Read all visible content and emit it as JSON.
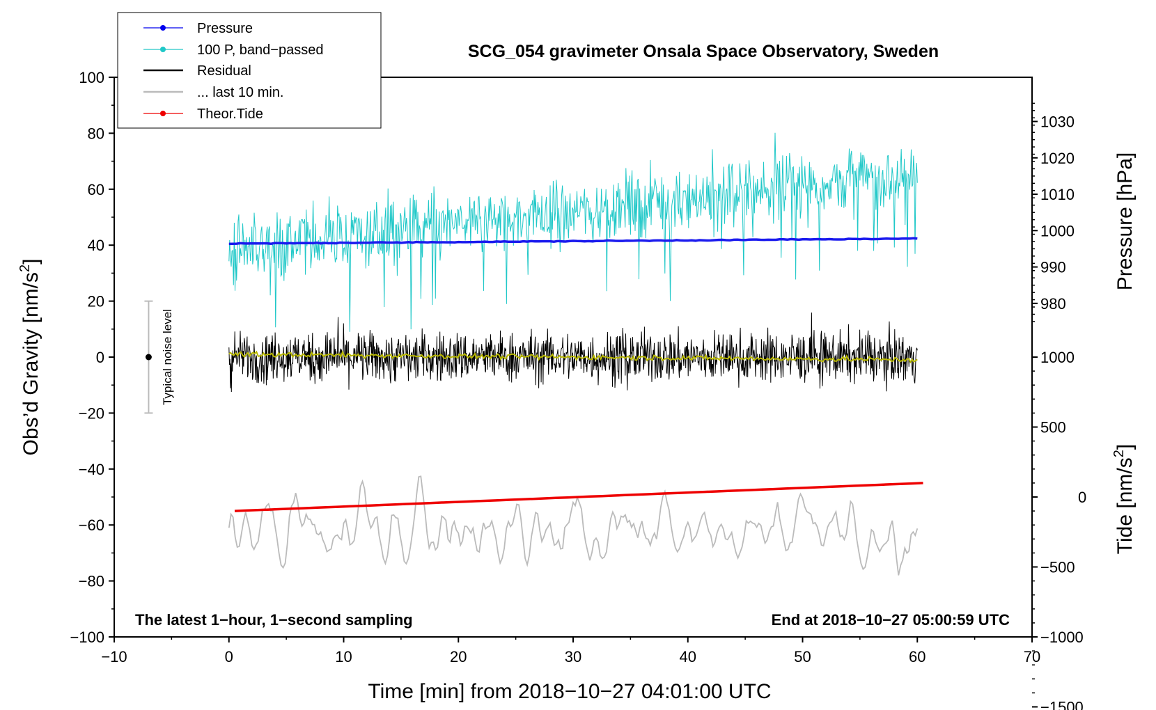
{
  "chart_data": {
    "type": "line",
    "title": "SCG_054 gravimeter Onsala Space Observatory, Sweden",
    "xlabel": "Time [min] from 2018−10−27 04:01:00 UTC",
    "ylabel_left": "Obs’d Gravity [nm/s",
    "ylabel_left_sup": "2",
    "ylabel_left_end": "]",
    "ylabel_pressure": "Pressure [hPa]",
    "ylabel_tide": "Tide [nm/s",
    "ylabel_tide_sup": "2",
    "ylabel_tide_end": "]",
    "xlim": [
      -10,
      70
    ],
    "ylim": [
      -100,
      100
    ],
    "x_ticks": [
      {
        "value": -10,
        "label": "−10"
      },
      {
        "value": 0,
        "label": "0"
      },
      {
        "value": 10,
        "label": "10"
      },
      {
        "value": 20,
        "label": "20"
      },
      {
        "value": 30,
        "label": "30"
      },
      {
        "value": 40,
        "label": "40"
      },
      {
        "value": 50,
        "label": "50"
      },
      {
        "value": 60,
        "label": "60"
      },
      {
        "value": 70,
        "label": "70"
      }
    ],
    "y_ticks": [
      {
        "value": 100,
        "label": "100"
      },
      {
        "value": 80,
        "label": "80"
      },
      {
        "value": 60,
        "label": "60"
      },
      {
        "value": 40,
        "label": "40"
      },
      {
        "value": 20,
        "label": "20"
      },
      {
        "value": 0,
        "label": "0"
      },
      {
        "value": -20,
        "label": "−20"
      },
      {
        "value": -40,
        "label": "−40"
      },
      {
        "value": -60,
        "label": "−60"
      },
      {
        "value": -80,
        "label": "−80"
      },
      {
        "value": -100,
        "label": "−100"
      }
    ],
    "pressure_axis": {
      "map_note": "gravity = 40 + (hPa - 996) * 1.3",
      "ticks": [
        {
          "value": 1030,
          "label": "1030"
        },
        {
          "value": 1020,
          "label": "1020"
        },
        {
          "value": 1010,
          "label": "1010"
        },
        {
          "value": 1000,
          "label": "1000"
        },
        {
          "value": 990,
          "label": "990"
        },
        {
          "value": 980,
          "label": "980"
        }
      ]
    },
    "tide_axis": {
      "map_note": "gravity = -50 + tide / 20",
      "ticks": [
        {
          "value": 1000,
          "label": "1000"
        },
        {
          "value": 500,
          "label": "500"
        },
        {
          "value": 0,
          "label": "0"
        },
        {
          "value": -500,
          "label": "−500"
        },
        {
          "value": -1000,
          "label": "−1000"
        },
        {
          "value": -1500,
          "label": "−1500"
        }
      ]
    },
    "annotations": {
      "left_info": "The latest 1−hour, 1−second sampling",
      "right_info": "End at 2018−10−27 05:00:59 UTC",
      "noise_label": "Typical noise level",
      "noise_bar": {
        "x": -7,
        "center": 0,
        "half_range": 20
      }
    },
    "legend": {
      "placement": "top-left",
      "entries": [
        {
          "label": "Pressure",
          "color": "#0000ee",
          "marker": true,
          "thick": false
        },
        {
          "label": "100 P, band−passed",
          "color": "#20c8c8",
          "marker": true,
          "thick": false
        },
        {
          "label": "Residual",
          "color": "#000000",
          "marker": false,
          "thick": true
        },
        {
          "label": "... last 10 min.",
          "color": "#bbbbbb",
          "marker": false,
          "thick": true
        },
        {
          "label": "Theor.Tide",
          "color": "#ee0000",
          "marker": true,
          "thick": false
        }
      ]
    },
    "series": [
      {
        "name": "Pressure",
        "color": "#1a1aee",
        "units": "hPa",
        "x_range": [
          0,
          60
        ],
        "start": 996.4,
        "end": 997.8
      },
      {
        "name": "100 P, band-passed",
        "color": "#20c8c8",
        "units": "nm/s2 offset",
        "x_range": [
          0,
          60
        ],
        "trend": [
          38,
          66
        ],
        "amplitude": 11
      },
      {
        "name": "Residual",
        "color": "#000000",
        "units": "nm/s2",
        "x_range": [
          0,
          60
        ],
        "center": 0,
        "amplitude": 9
      },
      {
        "name": "Residual smoothed",
        "color": "#b8b800",
        "units": "nm/s2",
        "x_range": [
          0,
          60
        ],
        "start": 1,
        "end": -1
      },
      {
        "name": "Theor.Tide",
        "color": "#ee0000",
        "units": "nm/s2",
        "x_range": [
          0.5,
          60.5
        ],
        "start": -100,
        "end": 100
      },
      {
        "name": "... last 10 min.",
        "color": "#bbbbbb",
        "units": "nm/s2 (scaled)",
        "x_range": [
          0,
          60
        ],
        "center": -63,
        "amplitude": 8
      }
    ]
  }
}
